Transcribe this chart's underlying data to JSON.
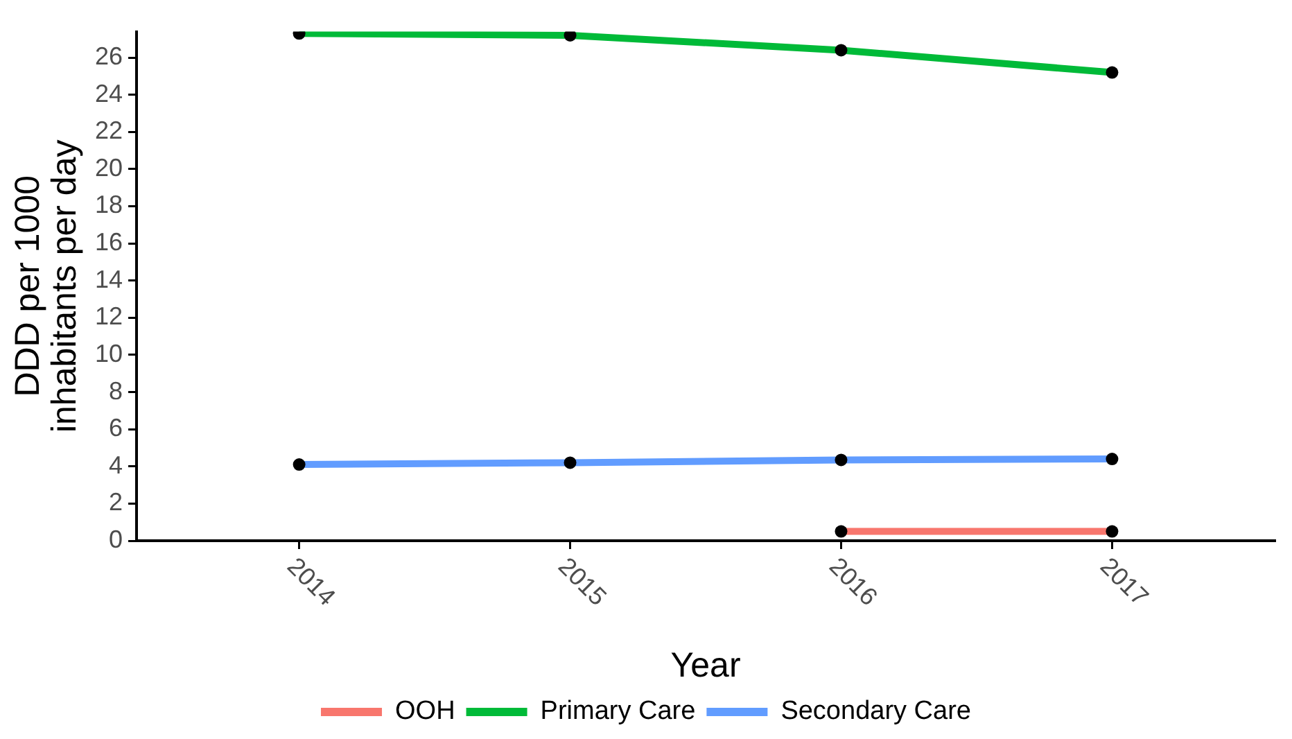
{
  "chart_data": {
    "type": "line",
    "xlabel": "Year",
    "ylabel": "DDD per 1000 inhabitants per day",
    "categories": [
      "2014",
      "2015",
      "2016",
      "2017"
    ],
    "series": [
      {
        "name": "OOH",
        "color": "#f8766d",
        "values": [
          null,
          null,
          0.5,
          0.5
        ]
      },
      {
        "name": "Primary Care",
        "color": "#00ba38",
        "values": [
          27.3,
          27.2,
          26.4,
          25.2
        ]
      },
      {
        "name": "Secondary Care",
        "color": "#619cff",
        "values": [
          4.1,
          4.2,
          4.35,
          4.4
        ]
      }
    ],
    "ylim": [
      0,
      27.4
    ],
    "yticks": [
      0,
      2,
      4,
      6,
      8,
      10,
      12,
      14,
      16,
      18,
      20,
      22,
      24,
      26
    ],
    "grid": false,
    "legend": "bottom",
    "marker": "circle",
    "line_style": "solid"
  }
}
